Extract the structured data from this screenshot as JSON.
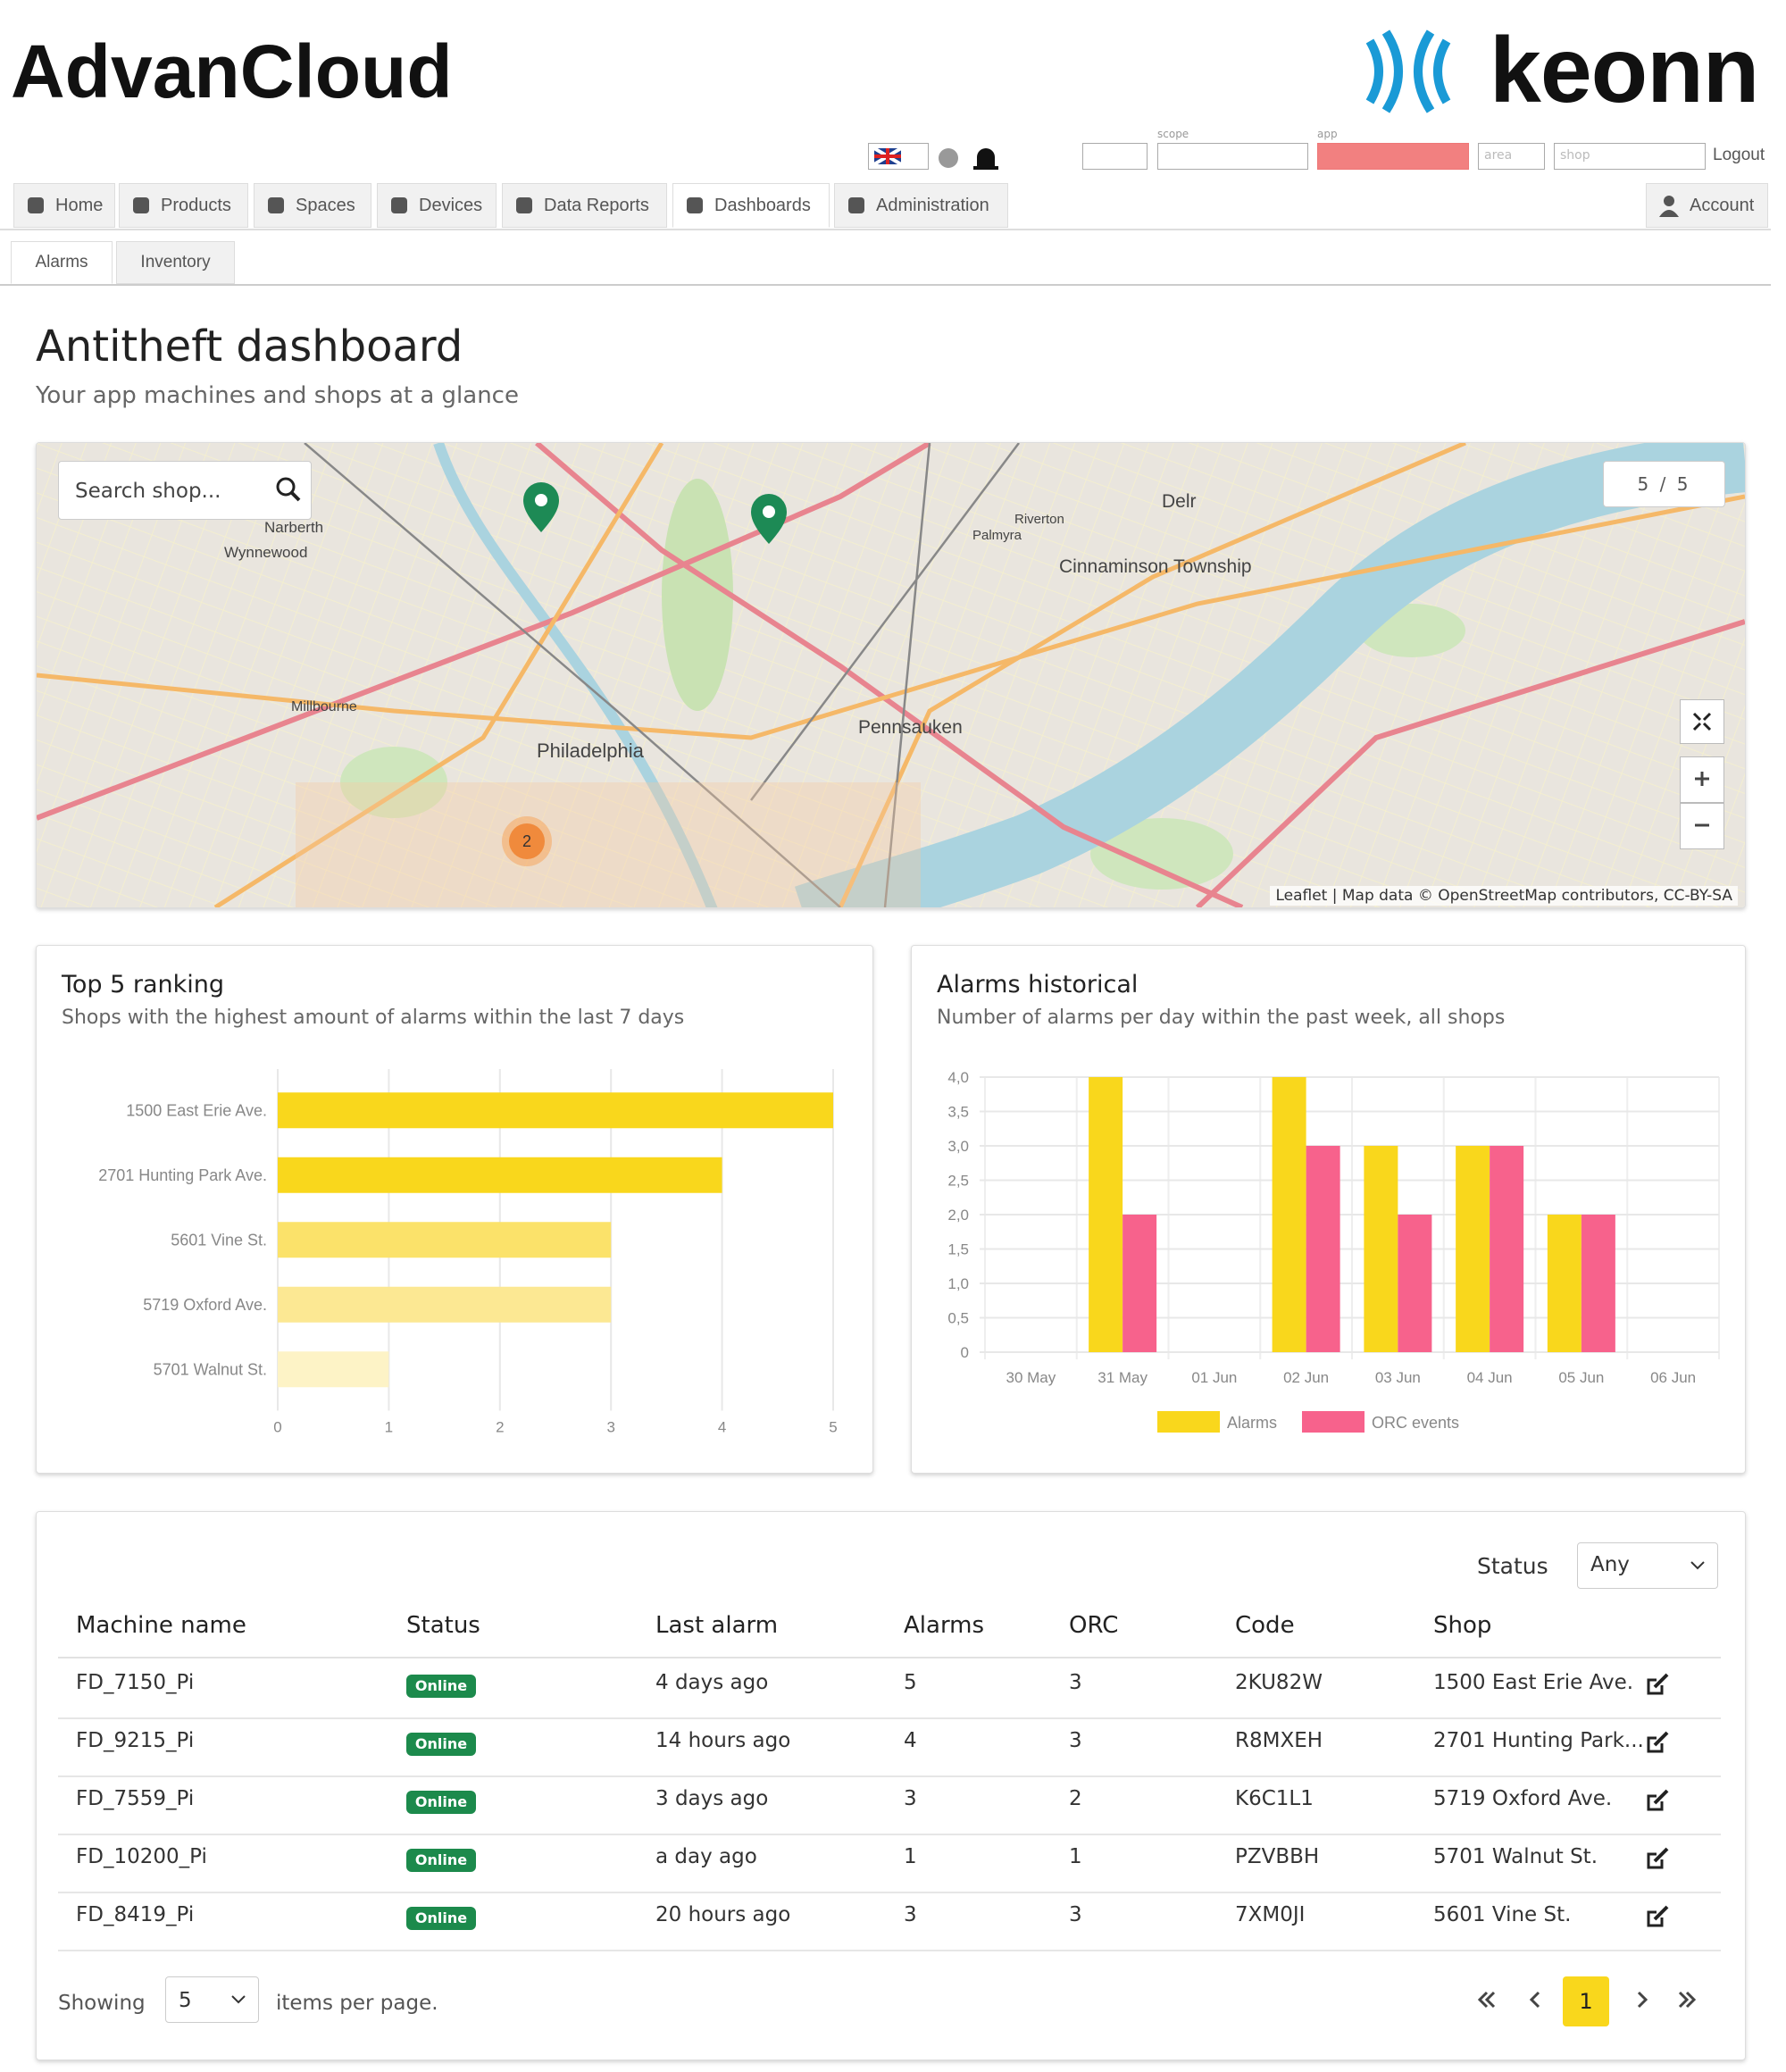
{
  "header": {
    "brand": "AdvanCloud",
    "logo": "keonn",
    "selectors": [
      "scope",
      "app"
    ],
    "area": "area",
    "shop": "shop",
    "logout": "Logout"
  },
  "nav": {
    "tabs": [
      "Home",
      "Products",
      "Spaces",
      "Devices",
      "Data Reports",
      "Dashboards",
      "Administration"
    ],
    "account": "Account",
    "subtabs": [
      "Alarms",
      "Inventory"
    ]
  },
  "dashboard": {
    "title": "Antitheft dashboard",
    "subtitle": "Your app machines and shops at a glance"
  },
  "map": {
    "search": "Search shop...",
    "counter": "5 / 5",
    "cluster": 2,
    "attribution": "Leaflet | Map data © OpenStreetMap contributors, CC-BY-SA",
    "places": [
      "Narberth",
      "Wynnewood",
      "Millbourne",
      "Philadelphia",
      "Pennsauken",
      "Riverton",
      "Palmyra",
      "Cinnaminson Township",
      "Delr"
    ]
  },
  "chart_data": [
    {
      "type": "bar",
      "orientation": "horizontal",
      "title": "Top 5 ranking",
      "subtitle": "Shops with the highest amount of alarms within the last 7 days",
      "categories": [
        "1500 East Erie Ave.",
        "2701 Hunting Park Ave.",
        "5601 Vine St.",
        "5719 Oxford Ave.",
        "5701 Walnut St."
      ],
      "values": [
        5,
        4,
        3,
        3,
        1
      ],
      "colors": [
        "#f9d71c",
        "#f9d71c",
        "#fbe26a",
        "#fce893",
        "#fdf3c6"
      ],
      "xlim": [
        0,
        5
      ],
      "xticks": [
        0,
        1,
        2,
        3,
        4,
        5
      ],
      "grid": true
    },
    {
      "type": "bar",
      "title": "Alarms historical",
      "subtitle": "Number of alarms per day within the past week, all shops",
      "categories": [
        "30 May",
        "31 May",
        "01 Jun",
        "02 Jun",
        "03 Jun",
        "04 Jun",
        "05 Jun",
        "06 Jun"
      ],
      "series": [
        {
          "name": "Alarms",
          "color": "#f9d71c",
          "values": [
            0,
            4,
            0,
            4,
            3,
            3,
            2,
            0
          ]
        },
        {
          "name": "ORC events",
          "color": "#f7628c",
          "values": [
            0,
            2,
            0,
            3,
            2,
            3,
            2,
            0
          ]
        }
      ],
      "ylim": [
        0,
        4
      ],
      "yticks": [
        0,
        {
          "value": 0.5,
          "label": "0,5"
        },
        {
          "value": 1,
          "label": "1,0"
        },
        {
          "value": 1.5,
          "label": "1,5"
        },
        {
          "value": 2,
          "label": "2,0"
        },
        {
          "value": 2.5,
          "label": "2,5"
        },
        {
          "value": 3,
          "label": "3,0"
        },
        {
          "value": 3.5,
          "label": "3,5"
        },
        {
          "value": 4,
          "label": "4,0"
        }
      ],
      "grid": true,
      "legend": "bottom"
    }
  ],
  "table": {
    "filter_label": "Status",
    "filter_value": "Any",
    "columns": [
      "Machine name",
      "Status",
      "Last alarm",
      "Alarms",
      "ORC",
      "Code",
      "Shop"
    ],
    "rows": [
      [
        "FD_7150_Pi",
        "Online",
        "4 days ago",
        5,
        3,
        "2KU82W",
        "1500 East Erie Ave."
      ],
      [
        "FD_9215_Pi",
        "Online",
        "14 hours ago",
        4,
        3,
        "R8MXEH",
        "2701 Hunting Park..."
      ],
      [
        "FD_7559_Pi",
        "Online",
        "3 days ago",
        3,
        2,
        "K6C1L1",
        "5719 Oxford Ave."
      ],
      [
        "FD_10200_Pi",
        "Online",
        "a day ago",
        1,
        1,
        "PZVBBH",
        "5701 Walnut St."
      ],
      [
        "FD_8419_Pi",
        "Online",
        "20 hours ago",
        3,
        3,
        "7XM0JI",
        "5601 Vine St."
      ]
    ]
  },
  "footer": {
    "showing": "Showing",
    "page_size": 5,
    "suffix": "items per page.",
    "page": 1
  }
}
